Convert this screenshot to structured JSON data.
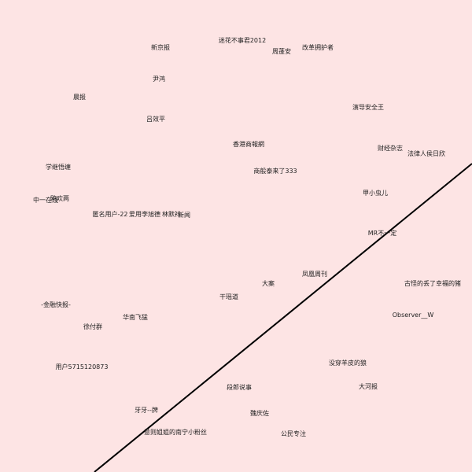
{
  "labels": [
    "迷花不事君2012",
    "新京报",
    "周蓬安",
    "改革拥护者",
    "尹鸿",
    "晨报",
    "演导安全王",
    "吕效平",
    "香港商報網",
    "财经杂志",
    "法律人侯日欣",
    "学继悟缠",
    "商般泰来了333",
    "甲小虫儿",
    "中一在线",
    "鸥欢两",
    "匿名用户-22",
    "爱用李旭德",
    "林默祥",
    "新闻",
    "MR不一定",
    "凤凰周刊",
    "大案",
    "古怪的丢了幸福的猪",
    "干瑶道",
    "-金融快报-",
    "Observer__W",
    "华南飞猛",
    "徐付群",
    "用户5715120873",
    "没穿羊皮的狼",
    "段郎说事",
    "大河报",
    "牙牙--牌",
    "魏庆佐",
    "意则姐姐的南宁小粉丝",
    "公民专注"
  ]
}
